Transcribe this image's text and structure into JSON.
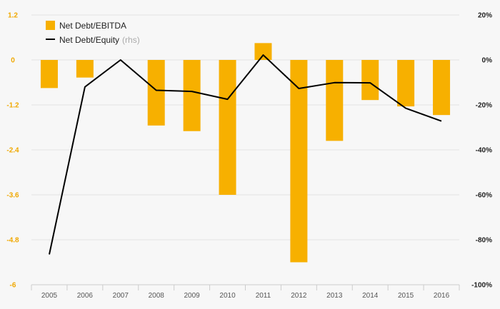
{
  "chart_data": {
    "type": "bar",
    "categories": [
      "2005",
      "2006",
      "2007",
      "2008",
      "2009",
      "2010",
      "2011",
      "2012",
      "2013",
      "2014",
      "2015",
      "2016"
    ],
    "series": [
      {
        "name": "Net Debt/EBITDA",
        "type": "bar",
        "axis": "left",
        "color": "#f7b000",
        "values": [
          -0.75,
          -0.47,
          null,
          -1.75,
          -1.9,
          -3.6,
          0.45,
          -5.4,
          -2.16,
          -1.07,
          -1.24,
          -1.47
        ]
      },
      {
        "name": "Net Debt/Equity",
        "name_note": "(rhs)",
        "type": "line",
        "axis": "right",
        "color": "#000000",
        "values": [
          -86.5,
          -12,
          0,
          -13.5,
          -14,
          -17.5,
          2.2,
          -12.7,
          -10.1,
          -10.2,
          -21.5,
          -27.2
        ]
      }
    ],
    "y_left": {
      "ylim": [
        -6,
        1.2
      ],
      "ticks": [
        1.2,
        0,
        -1.2,
        -2.4,
        -3.6,
        -4.8,
        -6
      ],
      "tick_labels": [
        "1.2",
        "0",
        "-1.2",
        "-2.4",
        "-3.6",
        "-4.8",
        "-6"
      ]
    },
    "y_right": {
      "ylim": [
        -100,
        20
      ],
      "ticks": [
        20,
        0,
        -20,
        -40,
        -60,
        -80,
        -100
      ],
      "tick_labels": [
        "20%",
        "0%",
        "-20%",
        "-40%",
        "-60%",
        "-80%",
        "-100%"
      ]
    },
    "grid": true,
    "legend_position": "top-left"
  }
}
